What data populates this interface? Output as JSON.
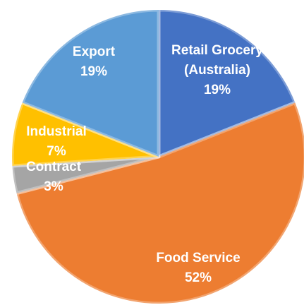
{
  "chart_data": {
    "type": "pie",
    "categories": [
      "Retail Grocery (Australia)",
      "Food Service",
      "Contract",
      "Industrial",
      "Export"
    ],
    "values": [
      19,
      52,
      3,
      7,
      19
    ],
    "value_labels": [
      "19%",
      "52%",
      "3%",
      "7%",
      "19%"
    ],
    "colors": [
      "#4472c4",
      "#ed7d31",
      "#a5a5a5",
      "#ffc000",
      "#5b9bd5"
    ]
  }
}
